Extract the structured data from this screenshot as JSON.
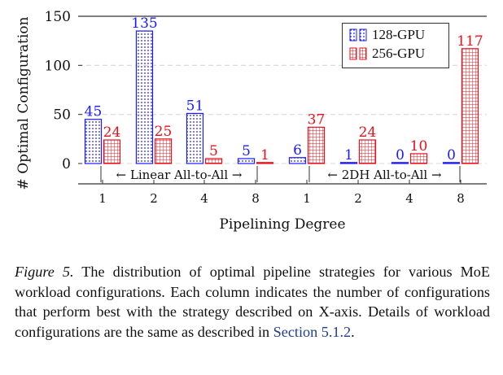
{
  "chart_data": {
    "type": "bar",
    "ylabel": "# Optimal Configuration",
    "xlabel": "Pipelining Degree",
    "yticks": [
      0,
      50,
      100,
      150
    ],
    "ylim": [
      -8,
      150
    ],
    "grid": "horizontal-dashed",
    "legend_position": "top-right",
    "categories": [
      "1",
      "2",
      "4",
      "8",
      "1",
      "2",
      "4",
      "8"
    ],
    "groups": [
      {
        "label": "← Linear All-to-All →"
      },
      {
        "label": "← 2DH All-to-All →"
      }
    ],
    "series": [
      {
        "name": "128-GPU",
        "color": "#1a1aff",
        "pattern": "dots",
        "values": [
          45,
          135,
          51,
          5,
          6,
          1,
          0,
          0
        ]
      },
      {
        "name": "256-GPU",
        "color": "#e8101a",
        "pattern": "grid",
        "values": [
          24,
          25,
          5,
          1,
          37,
          24,
          10,
          117
        ]
      }
    ]
  },
  "caption": {
    "figure_label": "Figure 5.",
    "text": "The distribution of optimal pipeline strategies for various MoE workload configurations. Each column indicates the number of configurations that perform best with the strategy described on X-axis. Details of workload configurations are the same as described in",
    "ref": "Section 5.1.2",
    "end": "."
  }
}
